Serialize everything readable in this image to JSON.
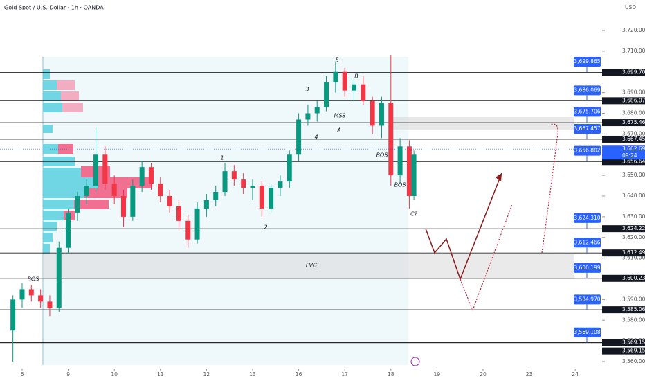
{
  "chart_data": {
    "type": "candlestick",
    "title": "Gold Spot / U.S. Dollar · 1h · OANDA",
    "currency": "USD",
    "up_color": "#089981",
    "down_color": "#f23645",
    "ylim": [
      3560,
      3720
    ],
    "yticks": [
      {
        "value": 3720,
        "label": "3,720.000"
      },
      {
        "value": 3710,
        "label": "3,710.000"
      },
      {
        "value": 3700,
        "label": "3,700.000"
      },
      {
        "value": 3690,
        "label": "3,690.000"
      },
      {
        "value": 3680,
        "label": "3,680.000"
      },
      {
        "value": 3670,
        "label": "3,670.000"
      },
      {
        "value": 3660,
        "label": "3,660.000"
      },
      {
        "value": 3650,
        "label": "3,650.000"
      },
      {
        "value": 3640,
        "label": "3,640.000"
      },
      {
        "value": 3630,
        "label": "3,630.000"
      },
      {
        "value": 3620,
        "label": "3,620.000"
      },
      {
        "value": 3610,
        "label": "3,610.000"
      },
      {
        "value": 3600,
        "label": "3,600.000"
      },
      {
        "value": 3590,
        "label": "3,590.000"
      },
      {
        "value": 3580,
        "label": "3,580.000"
      },
      {
        "value": 3570,
        "label": "3,570.000"
      },
      {
        "value": 3560,
        "label": "3,560.000"
      }
    ],
    "xlim": [
      -0.24,
      12.5
    ],
    "xticks": [
      {
        "value": 0,
        "label": "6"
      },
      {
        "value": 1,
        "label": "9"
      },
      {
        "value": 2,
        "label": "10"
      },
      {
        "value": 3,
        "label": "11"
      },
      {
        "value": 4,
        "label": "12"
      },
      {
        "value": 5,
        "label": "13"
      },
      {
        "value": 6,
        "label": "16"
      },
      {
        "value": 7,
        "label": "17"
      },
      {
        "value": 8,
        "label": "18"
      },
      {
        "value": 9,
        "label": "19"
      },
      {
        "value": 10,
        "label": "20"
      },
      {
        "value": 11,
        "label": "23"
      },
      {
        "value": 12,
        "label": "24"
      }
    ],
    "x": [
      -0.2,
      0,
      0.2,
      0.4,
      0.6,
      0.8,
      1.0,
      1.2,
      1.4,
      1.6,
      1.8,
      2.0,
      2.2,
      2.4,
      2.6,
      2.8,
      3.0,
      3.2,
      3.4,
      3.6,
      3.8,
      4.0,
      4.2,
      4.4,
      4.6,
      4.8,
      5.0,
      5.2,
      5.4,
      5.6,
      5.8,
      6.0,
      6.2,
      6.4,
      6.6,
      6.8,
      7.0,
      7.2,
      7.4,
      7.6,
      7.8,
      8.0,
      8.2,
      8.4,
      8.5
    ],
    "open": [
      3575,
      3590,
      3595,
      3592,
      3589,
      3586,
      3615,
      3632,
      3640,
      3645,
      3660,
      3646,
      3640,
      3630,
      3645,
      3654,
      3646,
      3640,
      3635,
      3628,
      3619,
      3634,
      3638,
      3642,
      3652,
      3648,
      3644,
      3645,
      3634,
      3644,
      3647,
      3660,
      3677,
      3680,
      3683,
      3695,
      3700,
      3691,
      3694,
      3686,
      3674,
      3685,
      3650,
      3664,
      3640
    ],
    "high": [
      3592,
      3598,
      3597,
      3595,
      3592,
      3618,
      3634,
      3642,
      3648,
      3673,
      3664,
      3650,
      3643,
      3648,
      3657,
      3656,
      3649,
      3643,
      3638,
      3631,
      3637,
      3641,
      3645,
      3656,
      3655,
      3651,
      3648,
      3647,
      3646,
      3650,
      3662,
      3680,
      3684,
      3686,
      3698,
      3705,
      3702,
      3697,
      3698,
      3688,
      3688,
      3708,
      3668,
      3667,
      3662
    ],
    "low": [
      3560,
      3586,
      3589,
      3586,
      3582,
      3584,
      3612,
      3628,
      3636,
      3642,
      3643,
      3636,
      3625,
      3628,
      3642,
      3643,
      3637,
      3632,
      3624,
      3615,
      3617,
      3630,
      3635,
      3640,
      3645,
      3641,
      3638,
      3630,
      3632,
      3640,
      3644,
      3657,
      3674,
      3676,
      3681,
      3690,
      3688,
      3686,
      3684,
      3670,
      3668,
      3645,
      3646,
      3634,
      3638
    ],
    "close": [
      3590,
      3595,
      3592,
      3589,
      3586,
      3615,
      3632,
      3640,
      3645,
      3660,
      3646,
      3640,
      3630,
      3645,
      3654,
      3646,
      3640,
      3635,
      3628,
      3619,
      3634,
      3638,
      3642,
      3652,
      3648,
      3644,
      3645,
      3634,
      3644,
      3647,
      3660,
      3677,
      3680,
      3683,
      3695,
      3700,
      3691,
      3694,
      3686,
      3674,
      3685,
      3650,
      3664,
      3640,
      3660
    ],
    "levels": [
      3699.707,
      3686.072,
      3675.463,
      3667.456,
      3656.647,
      3624.22,
      3612.499,
      3600.237,
      3585.064,
      3569.159,
      3569.159
    ],
    "level_labels": [
      "3,699.707",
      "3,686.072",
      "3,675.463",
      "3,667.456",
      "3,656.647",
      "3,624.220",
      "3,612.499",
      "3,600.237",
      "3,585.064",
      "3,569.159",
      "3,569.159"
    ],
    "alerts": [
      3699.865,
      3686.069,
      3675.706,
      3667.457,
      3656.882,
      3624.31,
      3612.466,
      3600.199,
      3584.97,
      3569.108
    ],
    "alert_labels": [
      "3,699.865",
      "3,686.069",
      "3,675.706",
      "3,667.457",
      "3,656.882",
      "3,624.310",
      "3,612.466",
      "3,600.199",
      "3,584.970",
      "3,569.108"
    ],
    "last_price": 3662.695,
    "last_price_label": "3,662.695",
    "countdown": "09:24",
    "annotations": [
      "5",
      "B",
      "3",
      "MSS",
      "A",
      "4",
      "1",
      "BOS",
      "2",
      "BOS",
      "C?",
      "BOS",
      "FVG"
    ]
  }
}
